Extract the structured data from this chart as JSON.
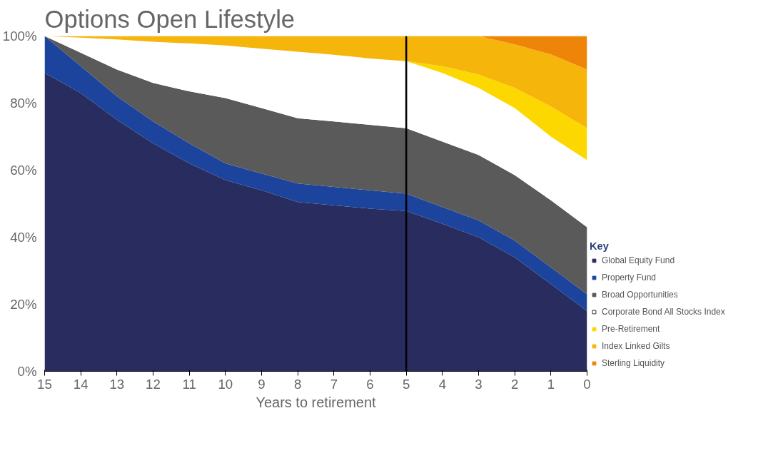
{
  "chart_data": {
    "type": "area",
    "stacked": true,
    "title": "Options Open Lifestyle",
    "xlabel": "Years to retirement",
    "x": [
      15,
      14,
      13,
      12,
      11,
      10,
      9,
      8,
      7,
      6,
      5,
      4,
      3,
      2,
      1,
      0
    ],
    "xlim": [
      15,
      0
    ],
    "xticks": [
      15,
      14,
      13,
      12,
      11,
      10,
      9,
      8,
      7,
      6,
      5,
      4,
      3,
      2,
      1,
      0
    ],
    "ylim": [
      0,
      100
    ],
    "yticks": [
      {
        "value": 0,
        "label": "0%"
      },
      {
        "value": 20,
        "label": "20%"
      },
      {
        "value": 40,
        "label": "40%"
      },
      {
        "value": 60,
        "label": "60%"
      },
      {
        "value": 80,
        "label": "80%"
      },
      {
        "value": 100,
        "label": "100%"
      }
    ],
    "grid": false,
    "legend": "right",
    "legend_title": "Key",
    "ref_lines": [
      {
        "axis": "x",
        "value": 5,
        "color": "#000000"
      }
    ],
    "series": [
      {
        "name": "Global Equity Fund",
        "color": "#282c5e",
        "values": [
          89,
          83,
          75,
          68,
          62,
          57,
          54,
          50.5,
          49.5,
          48.5,
          47.8,
          44,
          40,
          34,
          26,
          18
        ]
      },
      {
        "name": "Property Fund",
        "color": "#1c449c",
        "values": [
          11,
          8,
          7,
          6.5,
          6,
          5,
          5,
          5.5,
          5.5,
          5.5,
          5.2,
          5,
          5,
          5,
          5,
          5
        ]
      },
      {
        "name": "Broad Opportunities",
        "color": "#5a5a5a",
        "values": [
          0,
          4,
          8,
          11.5,
          15.5,
          19.5,
          19.5,
          19.5,
          19.5,
          19.5,
          19.5,
          19.5,
          19.5,
          19.5,
          20,
          20
        ]
      },
      {
        "name": "Corporate Bond All Stocks Index",
        "color": "#ffffff",
        "values": [
          0,
          4.5,
          9,
          12.3,
          14.3,
          15.7,
          17.7,
          19.8,
          19.9,
          19.8,
          20,
          20.5,
          20,
          20,
          19,
          20
        ]
      },
      {
        "name": "Pre-Retirement",
        "color": "#fdd800",
        "values": [
          0,
          0,
          0,
          0,
          0,
          0,
          0,
          0,
          0,
          0,
          0,
          2,
          4,
          6,
          9,
          9.5
        ]
      },
      {
        "name": "Index Linked Gilts",
        "color": "#f6b50a",
        "values": [
          0,
          0.5,
          1,
          1.7,
          2.2,
          2.8,
          3.8,
          4.7,
          5.6,
          6.7,
          7.5,
          9,
          11.5,
          13,
          15.5,
          17.5
        ]
      },
      {
        "name": "Sterling Liquidity",
        "color": "#ee8508",
        "values": [
          0,
          0,
          0,
          0,
          0,
          0,
          0,
          0,
          0,
          0,
          0,
          0,
          0,
          2.5,
          5.5,
          10
        ]
      }
    ]
  }
}
